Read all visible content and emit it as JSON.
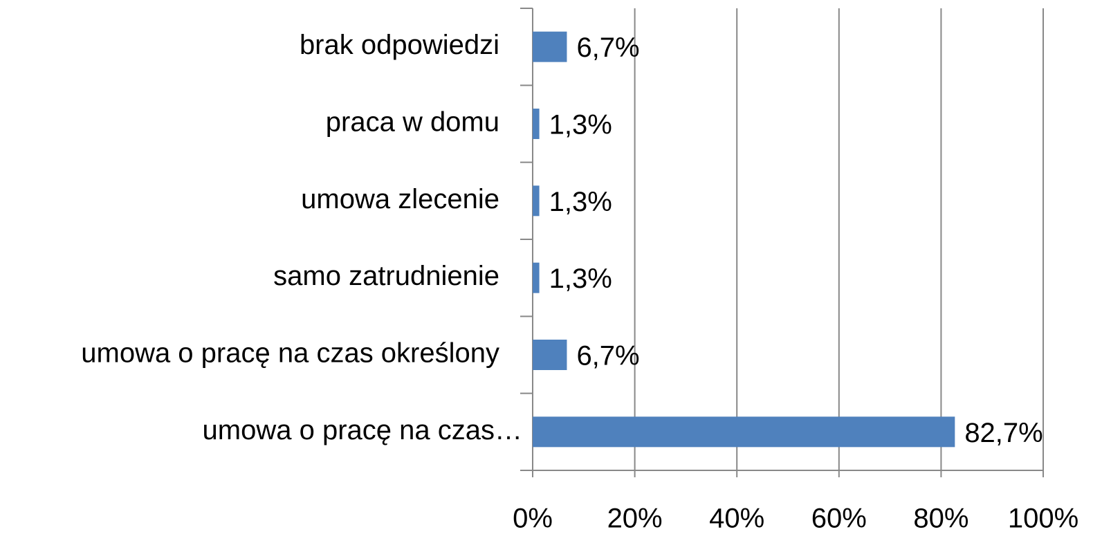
{
  "chart_data": {
    "type": "barh",
    "categories": [
      "brak odpowiedzi",
      "praca w domu",
      "umowa zlecenie",
      "samo zatrudnienie",
      "umowa o pracę na czas określony",
      "umowa o pracę na czas…"
    ],
    "values": [
      6.7,
      1.3,
      1.3,
      1.3,
      6.7,
      82.7
    ],
    "value_labels": [
      "6,7%",
      "1,3%",
      "1,3%",
      "1,3%",
      "6,7%",
      "82,7%"
    ],
    "color": "#4f81bd",
    "xlim": [
      0,
      100
    ],
    "xticks": [
      {
        "value": 0,
        "label": "0%"
      },
      {
        "value": 20,
        "label": "20%"
      },
      {
        "value": 40,
        "label": "40%"
      },
      {
        "value": 60,
        "label": "60%"
      },
      {
        "value": 80,
        "label": "80%"
      },
      {
        "value": 100,
        "label": "100%"
      }
    ],
    "grid": true
  }
}
